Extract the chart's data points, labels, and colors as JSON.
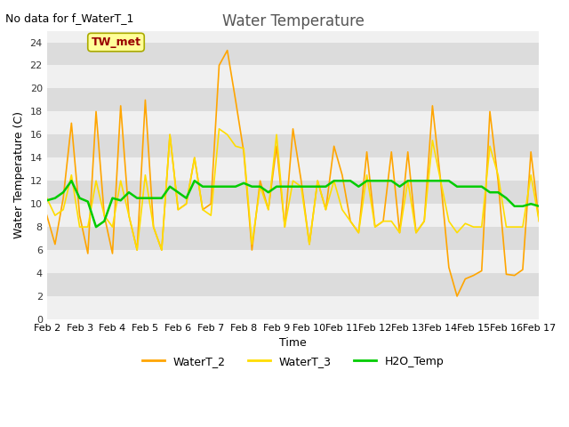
{
  "title": "Water Temperature",
  "ylabel": "Water Temperature (C)",
  "xlabel": "Time",
  "annotation": "No data for f_WaterT_1",
  "legend_label": "TW_met",
  "ylim": [
    0,
    25
  ],
  "yticks": [
    0,
    2,
    4,
    6,
    8,
    10,
    12,
    14,
    16,
    18,
    20,
    22,
    24
  ],
  "xtick_labels": [
    "Feb 2",
    "Feb 3",
    "Feb 4",
    "Feb 5",
    "Feb 6",
    "Feb 7",
    "Feb 8",
    "Feb 9",
    "Feb 10",
    "Feb 11",
    "Feb 12",
    "Feb 13",
    "Feb 14",
    "Feb 15",
    "Feb 16",
    "Feb 17"
  ],
  "color_waterT2": "#FFA500",
  "color_waterT3": "#FFDD00",
  "color_h2otemp": "#00CC00",
  "bg_color_dark": "#DCDCDC",
  "bg_color_light": "#F0F0F0",
  "waterT2": [
    9.0,
    6.5,
    10.5,
    17.0,
    9.0,
    5.7,
    18.0,
    9.0,
    5.7,
    18.5,
    9.0,
    6.0,
    19.0,
    8.0,
    6.0,
    16.0,
    9.5,
    10.0,
    14.0,
    9.5,
    10.0,
    22.0,
    23.3,
    19.0,
    14.5,
    6.0,
    12.0,
    9.5,
    15.0,
    8.0,
    16.5,
    12.0,
    6.5,
    12.0,
    9.5,
    15.0,
    12.5,
    8.5,
    7.5,
    14.5,
    8.0,
    8.5,
    14.5,
    7.5,
    14.5,
    7.5,
    8.5,
    18.5,
    12.0,
    4.5,
    2.0,
    3.5,
    3.8,
    4.2,
    18.0,
    12.0,
    3.9,
    3.8,
    4.3,
    14.5,
    8.5
  ],
  "waterT3": [
    10.5,
    9.0,
    9.5,
    12.5,
    8.0,
    8.0,
    12.0,
    9.0,
    8.0,
    12.0,
    9.0,
    6.0,
    12.5,
    8.0,
    6.0,
    16.0,
    9.5,
    10.0,
    14.0,
    9.5,
    9.0,
    16.5,
    16.0,
    15.0,
    14.8,
    6.5,
    11.5,
    9.5,
    16.0,
    8.0,
    12.0,
    11.5,
    6.5,
    12.0,
    9.5,
    12.0,
    9.5,
    8.5,
    7.5,
    12.5,
    8.0,
    8.5,
    8.5,
    7.5,
    12.0,
    7.5,
    8.5,
    15.5,
    12.0,
    8.5,
    7.5,
    8.3,
    8.0,
    8.0,
    15.0,
    12.5,
    8.0,
    8.0,
    8.0,
    12.5,
    8.5
  ],
  "h2otemp": [
    10.3,
    10.5,
    11.0,
    12.0,
    10.5,
    10.2,
    8.0,
    8.5,
    10.5,
    10.3,
    11.0,
    10.5,
    10.5,
    10.5,
    10.5,
    11.5,
    11.0,
    10.5,
    12.0,
    11.5,
    11.5,
    11.5,
    11.5,
    11.5,
    11.8,
    11.5,
    11.5,
    11.0,
    11.5,
    11.5,
    11.5,
    11.5,
    11.5,
    11.5,
    11.5,
    12.0,
    12.0,
    12.0,
    11.5,
    12.0,
    12.0,
    12.0,
    12.0,
    11.5,
    12.0,
    12.0,
    12.0,
    12.0,
    12.0,
    12.0,
    11.5,
    11.5,
    11.5,
    11.5,
    11.0,
    11.0,
    10.5,
    9.8,
    9.8,
    10.0,
    9.8
  ]
}
